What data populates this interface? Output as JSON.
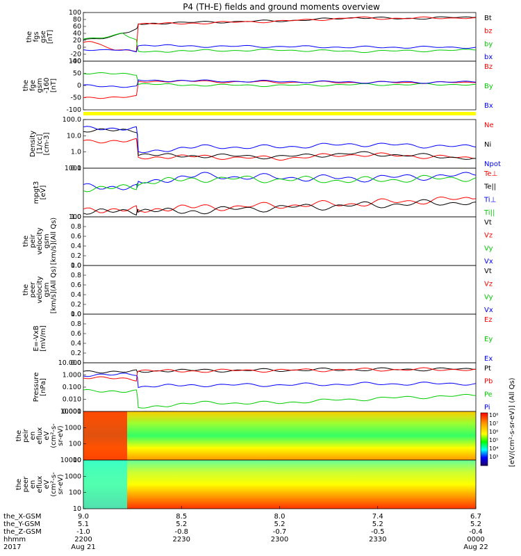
{
  "title": "P4 (TH-E) fields and ground moments overview",
  "chart_data": [
    {
      "id": "fgs",
      "type": "line",
      "ylabel": [
        "the",
        "fgs",
        "gse",
        "[nT]"
      ],
      "yticks": [
        "100",
        "80",
        "60",
        "40",
        "20",
        "0",
        "-20",
        "-40"
      ],
      "ylim": [
        -40,
        100
      ],
      "series": [
        {
          "name": "Bt",
          "color": "#000000",
          "x": [
            0,
            0.05,
            0.1,
            0.135,
            0.14,
            0.2,
            0.3,
            0.4,
            0.5,
            0.6,
            0.7,
            0.75,
            0.8,
            0.9,
            1.0
          ],
          "values": [
            22,
            28,
            38,
            50,
            68,
            70,
            72,
            74,
            76,
            80,
            86,
            84,
            82,
            85,
            86
          ]
        },
        {
          "name": "bz",
          "color": "#ff0000",
          "x": [
            0,
            0.03,
            0.08,
            0.135,
            0.14,
            0.3,
            0.5,
            0.7,
            0.75,
            1.0
          ],
          "values": [
            15,
            12,
            -5,
            -10,
            66,
            70,
            75,
            85,
            83,
            85
          ]
        },
        {
          "name": "by",
          "color": "#00cc00",
          "x": [
            0,
            0.05,
            0.1,
            0.135,
            0.14,
            0.3,
            0.5,
            0.7,
            1.0
          ],
          "values": [
            22,
            30,
            40,
            20,
            -12,
            -10,
            -8,
            -12,
            -8
          ]
        },
        {
          "name": "bx",
          "color": "#0000ff",
          "x": [
            0,
            0.05,
            0.1,
            0.135,
            0.14,
            0.3,
            0.5,
            0.7,
            1.0
          ],
          "values": [
            -5,
            -10,
            -8,
            -12,
            5,
            3,
            2,
            0,
            0
          ]
        }
      ]
    },
    {
      "id": "fge",
      "type": "line",
      "ylabel": [
        "the",
        "fge",
        "gsm",
        "-160",
        "[nT]"
      ],
      "yticks": [
        "100",
        "50",
        "0",
        "-50",
        "-100"
      ],
      "ylim": [
        -120,
        100
      ],
      "series": [
        {
          "name": "Bz",
          "color": "#ff0000",
          "x": [
            0,
            0.135,
            0.14,
            0.3,
            0.5,
            0.7,
            1.0
          ],
          "values": [
            -65,
            -60,
            10,
            8,
            5,
            4,
            3
          ]
        },
        {
          "name": "By",
          "color": "#00cc00",
          "x": [
            0,
            0.135,
            0.14,
            0.3,
            0.5,
            0.7,
            1.0
          ],
          "values": [
            45,
            40,
            -5,
            -8,
            -10,
            -6,
            -5
          ]
        },
        {
          "name": "Bx",
          "color": "#0000ff",
          "x": [
            0,
            0.135,
            0.14,
            0.3,
            0.5,
            0.7,
            1.0
          ],
          "values": [
            -10,
            -15,
            15,
            10,
            8,
            5,
            5
          ]
        }
      ]
    },
    {
      "id": "density",
      "type": "line",
      "yscale": "log",
      "ylabel": [
        "Density",
        "[1/cc]",
        "[cm-3]"
      ],
      "yticks": [
        "100.0",
        "10.0",
        "1.0",
        "0.1"
      ],
      "ylim": [
        0.1,
        100
      ],
      "series": [
        {
          "name": "Ne",
          "color": "#ff0000",
          "x": [
            0,
            0.135,
            0.14,
            0.3,
            0.5,
            0.7,
            1.0
          ],
          "values": [
            5,
            5,
            0.5,
            0.5,
            0.4,
            0.7,
            0.4
          ]
        },
        {
          "name": "Ni",
          "color": "#000000",
          "x": [
            0,
            0.135,
            0.14,
            0.3,
            0.5,
            0.7,
            1.0
          ],
          "values": [
            20,
            20,
            0.6,
            0.6,
            0.5,
            0.8,
            0.4
          ]
        },
        {
          "name": "Npot",
          "color": "#0000ff",
          "x": [
            0,
            0.135,
            0.14,
            0.3,
            0.5,
            0.7,
            1.0
          ],
          "values": [
            30,
            30,
            1,
            2,
            2,
            3,
            2
          ]
        }
      ]
    },
    {
      "id": "temperature",
      "type": "line",
      "yscale": "log",
      "ylabel": [
        "mpgt3",
        "[eV]"
      ],
      "yticks": [
        "1000",
        "100"
      ],
      "ylim": [
        40,
        3000
      ],
      "series": [
        {
          "name": "Te⊥",
          "color": "#ff0000",
          "x": [
            0,
            0.135,
            0.14,
            0.3,
            0.5,
            0.7,
            1.0
          ],
          "values": [
            80,
            80,
            80,
            90,
            110,
            130,
            200
          ]
        },
        {
          "name": "Te||",
          "color": "#000000",
          "x": [
            0,
            0.135,
            0.14,
            0.3,
            0.5,
            0.7,
            1.0
          ],
          "values": [
            60,
            60,
            60,
            70,
            90,
            110,
            150
          ]
        },
        {
          "name": "Ti⊥",
          "color": "#0000ff",
          "x": [
            0,
            0.135,
            0.14,
            0.3,
            0.5,
            0.7,
            1.0
          ],
          "values": [
            600,
            600,
            900,
            1500,
            1300,
            1200,
            1600
          ]
        },
        {
          "name": "Ti||",
          "color": "#00cc00",
          "x": [
            0,
            0.135,
            0.14,
            0.3,
            0.5,
            0.7,
            1.0
          ],
          "values": [
            500,
            500,
            700,
            1200,
            1100,
            1000,
            1300
          ]
        }
      ]
    },
    {
      "id": "peir_velocity",
      "type": "line",
      "ylabel": [
        "the",
        "peir",
        "velocity",
        "gsm",
        "[km/s](All Qs)"
      ],
      "yticks": [
        "1.0",
        "0.8",
        "0.6",
        "0.4",
        "0.2",
        "0.0"
      ],
      "ylim": [
        0,
        1
      ],
      "series": [
        {
          "name": "Vt",
          "color": "#000000",
          "values": []
        },
        {
          "name": "Vz",
          "color": "#ff0000",
          "values": []
        },
        {
          "name": "Vy",
          "color": "#00cc00",
          "values": []
        },
        {
          "name": "Vx",
          "color": "#0000ff",
          "values": []
        }
      ]
    },
    {
      "id": "peer_velocity",
      "type": "line",
      "ylabel": [
        "the",
        "peer",
        "velocity",
        "gsm",
        "[km/s](All Qs)"
      ],
      "yticks": [
        "1.0",
        "0.8",
        "0.6",
        "0.4",
        "0.2",
        "0.0"
      ],
      "ylim": [
        0,
        1
      ],
      "series": [
        {
          "name": "Vt",
          "color": "#000000",
          "values": []
        },
        {
          "name": "Vz",
          "color": "#ff0000",
          "values": []
        },
        {
          "name": "Vy",
          "color": "#00cc00",
          "values": []
        },
        {
          "name": "Vx",
          "color": "#0000ff",
          "values": []
        }
      ]
    },
    {
      "id": "efield",
      "type": "line",
      "ylabel": [
        "E=-VxB",
        "[mV/m]"
      ],
      "yticks": [
        "1.0",
        "0.8",
        "0.6",
        "0.4",
        "0.2",
        "0.0"
      ],
      "ylim": [
        0,
        1
      ],
      "series": [
        {
          "name": "Ez",
          "color": "#ff0000",
          "values": []
        },
        {
          "name": "Ey",
          "color": "#00cc00",
          "values": []
        },
        {
          "name": "Ex",
          "color": "#0000ff",
          "values": []
        }
      ]
    },
    {
      "id": "pressure",
      "type": "line",
      "yscale": "log",
      "ylabel": [
        "Pressure",
        "[nPa]"
      ],
      "yticks": [
        "10.000",
        "1.000",
        "0.100",
        "0.010",
        "0.001"
      ],
      "ylim": [
        0.001,
        10
      ],
      "series": [
        {
          "name": "Pt",
          "color": "#000000",
          "x": [
            0,
            0.135,
            0.14,
            0.3,
            0.5,
            0.7,
            1.0
          ],
          "values": [
            2,
            2,
            2.2,
            2.3,
            2.5,
            2.8,
            3
          ]
        },
        {
          "name": "Pb",
          "color": "#ff0000",
          "x": [
            0,
            0.135,
            0.14,
            0.3,
            0.5,
            0.7,
            1.0
          ],
          "values": [
            0.6,
            0.4,
            2,
            2.2,
            2.4,
            2.7,
            2.9
          ]
        },
        {
          "name": "Pe",
          "color": "#00cc00",
          "x": [
            0,
            0.135,
            0.14,
            0.3,
            0.5,
            0.7,
            1.0
          ],
          "values": [
            0.05,
            0.05,
            0.002,
            0.005,
            0.005,
            0.01,
            0.02
          ]
        },
        {
          "name": "Pi",
          "color": "#0000ff",
          "x": [
            0,
            0.135,
            0.14,
            0.3,
            0.5,
            0.7,
            1.0
          ],
          "values": [
            1,
            1,
            0.1,
            0.15,
            0.15,
            0.18,
            0.2
          ]
        }
      ]
    },
    {
      "id": "peir_eflux",
      "type": "heatmap",
      "ylabel": [
        "the",
        "peir",
        "en",
        "eflux",
        "eV",
        "(cm²-s-",
        "sr-eV)"
      ],
      "yticks": [
        "10000",
        "1000",
        "100",
        "10"
      ]
    },
    {
      "id": "peer_eflux",
      "type": "heatmap",
      "ylabel": [
        "the",
        "peer",
        "en",
        "eflux",
        "eV",
        "(cm²-s-",
        "sr-eV)"
      ],
      "yticks": [
        "10000",
        "1000",
        "100",
        "10"
      ]
    }
  ],
  "colorbar": {
    "label": "[eV/(cm²-s-sr-eV)] (All Qs)",
    "ticks_top": [
      "10⁸",
      "10⁷",
      "10⁶",
      "10⁵",
      "10⁴",
      "10³"
    ],
    "ticks_bottom": [
      "10⁸",
      "10⁷",
      "10⁶",
      "10⁵",
      "10⁴",
      "10³"
    ]
  },
  "xaxis": {
    "row_labels": [
      "the_X-GSM",
      "the_Y-GSM",
      "the_Z-GSM",
      "hhmm",
      "2017"
    ],
    "columns": [
      {
        "values": [
          "9.0",
          "5.1",
          "-1.0",
          "2200",
          "Aug 21"
        ]
      },
      {
        "values": [
          "8.5",
          "5.2",
          "-0.8",
          "2230",
          ""
        ]
      },
      {
        "values": [
          "8.0",
          "5.2",
          "-0.7",
          "2300",
          ""
        ]
      },
      {
        "values": [
          "7.4",
          "5.2",
          "-0.5",
          "2330",
          ""
        ]
      },
      {
        "values": [
          "6.7",
          "5.2",
          "-0.4",
          "0000",
          "Aug 22"
        ]
      }
    ]
  },
  "colors": {
    "black": "#000000",
    "red": "#ff0000",
    "green": "#00cc00",
    "blue": "#0000ff",
    "yellow": "#ffff00"
  }
}
